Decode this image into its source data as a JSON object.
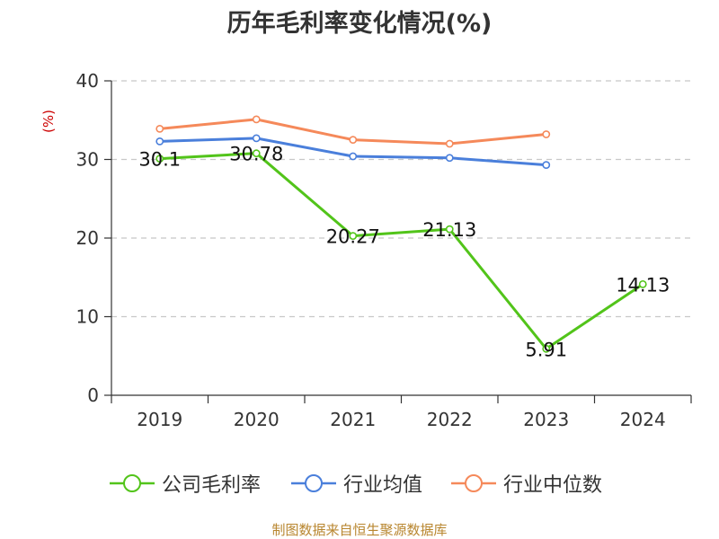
{
  "chart_data": {
    "type": "line",
    "title": "历年毛利率变化情况(%)",
    "unit_label": "(%)",
    "categories": [
      "2019",
      "2020",
      "2021",
      "2022",
      "2023",
      "2024"
    ],
    "ylim": [
      0,
      40
    ],
    "yticks": [
      "0",
      "10",
      "20",
      "30",
      "40"
    ],
    "grid": true,
    "legend_position": "bottom",
    "series": [
      {
        "name": "公司毛利率",
        "color": "#52c41a",
        "values": [
          30.1,
          30.78,
          20.27,
          21.13,
          5.91,
          14.13
        ],
        "labels": [
          "30.1",
          "30.78",
          "20.27",
          "21.13",
          "5.91",
          "14.13"
        ]
      },
      {
        "name": "行业均值",
        "color": "#4a7fdb",
        "values": [
          32.3,
          32.7,
          30.4,
          30.2,
          29.3,
          null
        ]
      },
      {
        "name": "行业中位数",
        "color": "#f5895a",
        "values": [
          33.9,
          35.1,
          32.5,
          32.0,
          33.2,
          null
        ]
      }
    ],
    "source": "制图数据来自恒生聚源数据库"
  }
}
